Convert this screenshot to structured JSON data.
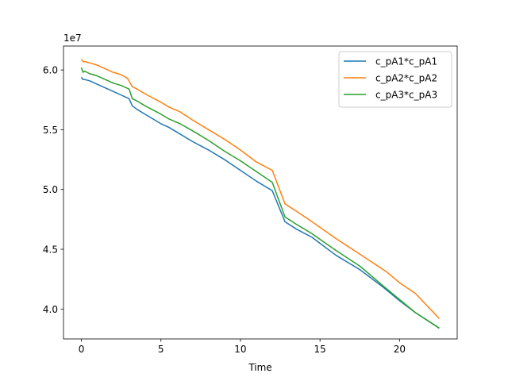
{
  "chart_data": {
    "type": "line",
    "title": "",
    "xlabel": "Time",
    "ylabel": "",
    "y_multiplier_label": "1e7",
    "xlim": [
      -1.125,
      23.625
    ],
    "ylim": [
      3.75,
      6.2
    ],
    "xticks": [
      0,
      5,
      10,
      15,
      20
    ],
    "xtick_labels": [
      "0",
      "5",
      "10",
      "15",
      "20"
    ],
    "yticks": [
      4.0,
      4.5,
      5.0,
      5.5,
      6.0
    ],
    "ytick_labels": [
      "4.0",
      "4.5",
      "5.0",
      "5.5",
      "6.0"
    ],
    "grid": false,
    "legend_position": "top-right",
    "series": [
      {
        "name": "c_pA1*c_pA1",
        "color": "#1f77b4",
        "x": [
          0,
          0.1,
          0.2,
          0.5,
          1,
          1.5,
          2,
          2.5,
          3.0,
          3.2,
          3.5,
          4,
          5,
          5.5,
          6,
          7,
          8,
          9,
          10,
          11,
          12,
          12.8,
          13.5,
          14.5,
          16,
          17.5,
          19,
          20,
          21,
          22.5
        ],
        "y": [
          5.94,
          5.92,
          5.92,
          5.91,
          5.88,
          5.85,
          5.82,
          5.79,
          5.76,
          5.7,
          5.67,
          5.63,
          5.55,
          5.52,
          5.48,
          5.4,
          5.33,
          5.25,
          5.16,
          5.07,
          4.99,
          4.73,
          4.67,
          4.6,
          4.45,
          4.33,
          4.18,
          4.07,
          3.97,
          3.84
        ]
      },
      {
        "name": "c_pA2*c_pA2",
        "color": "#ff7f0e",
        "x": [
          0,
          0.1,
          0.2,
          0.5,
          1,
          1.5,
          2,
          2.5,
          2.9,
          3.2,
          3.5,
          4,
          5,
          5.5,
          6.2,
          7,
          8,
          9,
          10,
          11,
          12,
          12.8,
          13.5,
          14.5,
          16,
          17.5,
          19.2,
          20,
          21,
          22.5
        ],
        "y": [
          6.09,
          6.07,
          6.07,
          6.06,
          6.04,
          6.01,
          5.98,
          5.96,
          5.93,
          5.86,
          5.84,
          5.8,
          5.73,
          5.69,
          5.65,
          5.58,
          5.5,
          5.42,
          5.33,
          5.23,
          5.16,
          4.88,
          4.82,
          4.73,
          4.59,
          4.46,
          4.31,
          4.22,
          4.13,
          3.92
        ]
      },
      {
        "name": "c_pA3*c_pA3",
        "color": "#2ca02c",
        "x": [
          0,
          0.1,
          0.2,
          0.5,
          1,
          1.5,
          2,
          2.5,
          3.0,
          3.2,
          3.5,
          4,
          5,
          5.5,
          6.2,
          7,
          8,
          9,
          10,
          11,
          12,
          12.8,
          13.5,
          14.5,
          16,
          17.5,
          19,
          20,
          21,
          22.5
        ],
        "y": [
          6.02,
          5.98,
          5.99,
          5.97,
          5.95,
          5.92,
          5.89,
          5.87,
          5.84,
          5.76,
          5.74,
          5.7,
          5.63,
          5.59,
          5.55,
          5.49,
          5.41,
          5.32,
          5.24,
          5.15,
          5.06,
          4.77,
          4.71,
          4.63,
          4.49,
          4.36,
          4.19,
          4.08,
          3.97,
          3.84
        ]
      }
    ]
  }
}
